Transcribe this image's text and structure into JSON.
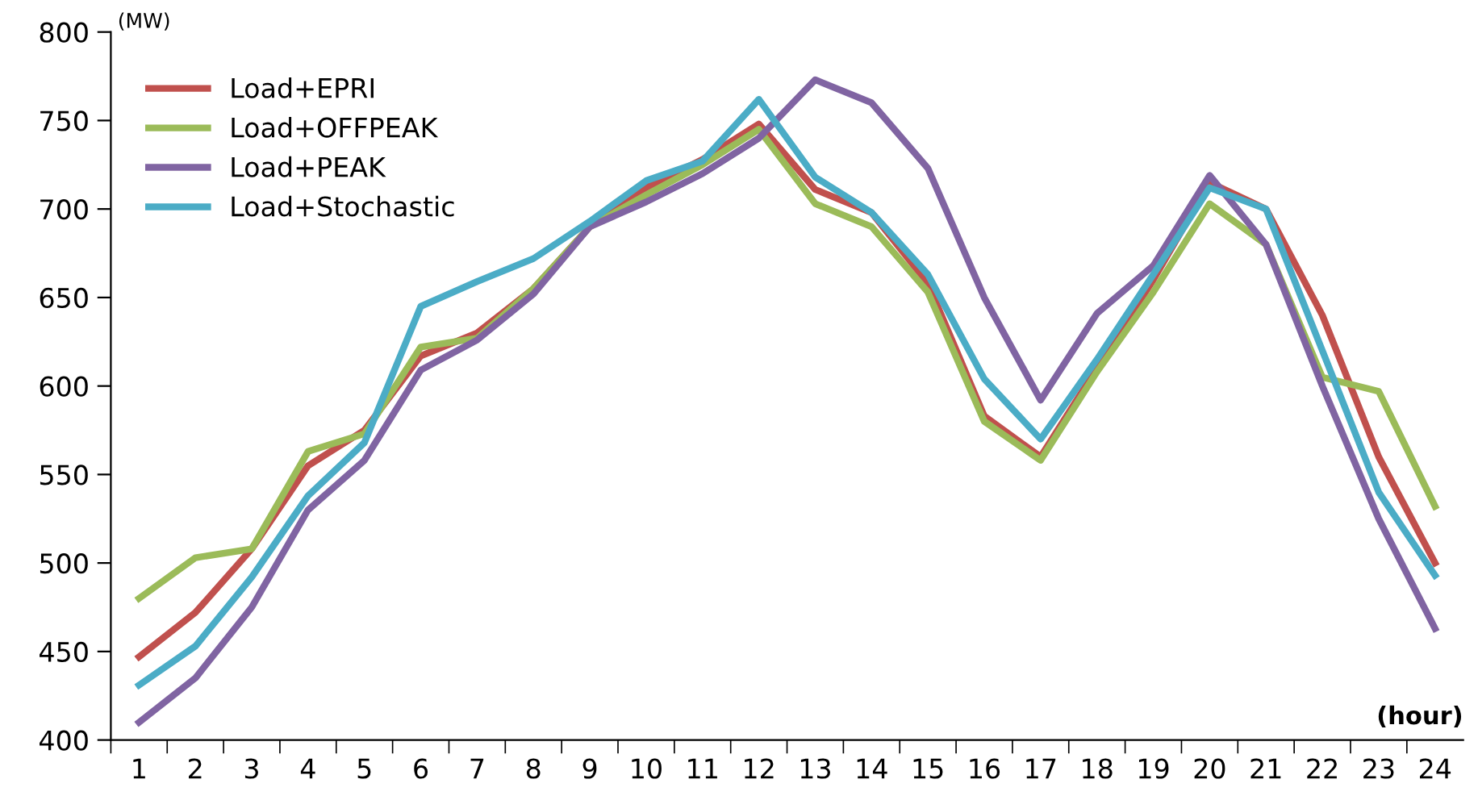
{
  "chart_data": {
    "type": "line",
    "xlabel": "(hour)",
    "ylabel": "(MW)",
    "categories": [
      "1",
      "2",
      "3",
      "4",
      "5",
      "6",
      "7",
      "8",
      "9",
      "10",
      "11",
      "12",
      "13",
      "14",
      "15",
      "16",
      "17",
      "18",
      "19",
      "20",
      "21",
      "22",
      "23",
      "24"
    ],
    "series": [
      {
        "name": "Load+EPRI",
        "color": "#c0504d",
        "values": [
          447,
          472,
          508,
          555,
          575,
          617,
          630,
          655,
          690,
          712,
          728,
          748,
          711,
          698,
          658,
          583,
          560,
          610,
          660,
          715,
          700,
          640,
          560,
          500
        ]
      },
      {
        "name": "Load+OFFPEAK",
        "color": "#9bbb59",
        "values": [
          480,
          503,
          508,
          563,
          573,
          622,
          627,
          655,
          690,
          708,
          725,
          745,
          703,
          690,
          653,
          580,
          558,
          608,
          653,
          703,
          680,
          605,
          597,
          532
        ]
      },
      {
        "name": "Load+PEAK",
        "color": "#8064a2",
        "values": [
          410,
          435,
          475,
          530,
          558,
          609,
          626,
          652,
          690,
          704,
          720,
          740,
          773,
          760,
          723,
          650,
          592,
          641,
          668,
          719,
          680,
          600,
          525,
          463
        ]
      },
      {
        "name": "Load+Stochastic",
        "color": "#4bacc6",
        "values": [
          431,
          453,
          492,
          538,
          568,
          645,
          659,
          672,
          693,
          716,
          727,
          762,
          718,
          698,
          663,
          604,
          570,
          615,
          663,
          712,
          700,
          620,
          540,
          493
        ]
      }
    ],
    "ylim": [
      400,
      800
    ],
    "yticks": [
      400,
      450,
      500,
      550,
      600,
      650,
      700,
      750,
      800
    ],
    "grid": false,
    "legend": "top left",
    "marker": "none",
    "line_style": "solid"
  }
}
